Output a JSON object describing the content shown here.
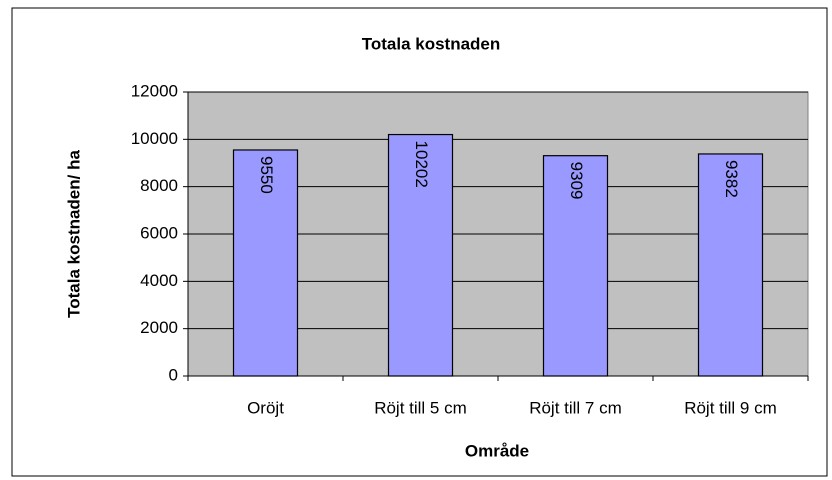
{
  "chart_data": {
    "type": "bar",
    "title": "Totala kostnaden",
    "x_label": "Område",
    "y_label": "Totala kostnaden/ ha",
    "categories": [
      "Oröjt",
      "Röjt till 5 cm",
      "Röjt till 7 cm",
      "Röjt till 9 cm"
    ],
    "values": [
      9550,
      10202,
      9309,
      9382
    ],
    "color": "#9999ff",
    "ylim": [
      0,
      12000
    ],
    "yticks": [
      0,
      2000,
      4000,
      6000,
      8000,
      10000,
      12000
    ],
    "grid": true,
    "data_labels": true
  }
}
